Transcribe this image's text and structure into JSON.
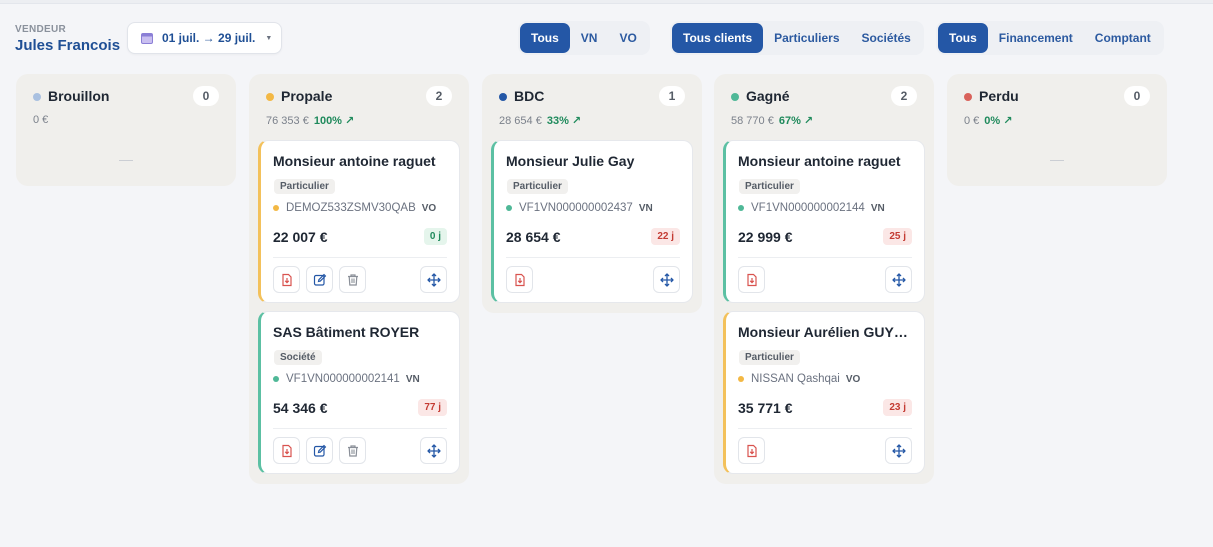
{
  "vendor": {
    "label": "VENDEUR",
    "name": "Jules Francois"
  },
  "date_range": {
    "value": "01 juil. → 29 juil.",
    "icon": "calendar-icon"
  },
  "filters": {
    "vehicle": {
      "options": [
        "Tous",
        "VN",
        "VO"
      ],
      "active": 0
    },
    "client": {
      "options": [
        "Tous clients",
        "Particuliers",
        "Sociétés"
      ],
      "active": 0
    },
    "payment": {
      "options": [
        "Tous",
        "Financement",
        "Comptant"
      ],
      "active": 0
    }
  },
  "columns": [
    {
      "id": "brouillon",
      "title": "Brouillon",
      "dot_color": "#a9c0e0",
      "count": "0",
      "amount": "0 €",
      "pct": "",
      "empty": "—",
      "cards": []
    },
    {
      "id": "propale",
      "title": "Propale",
      "dot_color": "#f3b844",
      "count": "2",
      "amount": "76 353 €",
      "pct": "100% ↗",
      "empty": "",
      "cards": [
        {
          "title": "Monsieur antoine raguet",
          "tag": "Particulier",
          "ref": "DEMOZ533ZSMV30QAB",
          "ref_dot": "#f3b844",
          "kind": "VO",
          "price": "22 007 €",
          "days": "0 j",
          "days_state": "ok",
          "border": "orange",
          "actions": [
            "download",
            "edit",
            "delete"
          ]
        },
        {
          "title": "SAS Bâtiment ROYER",
          "tag": "Société",
          "ref": "VF1VN000000002141",
          "ref_dot": "#4fb897",
          "kind": "VN",
          "price": "54 346 €",
          "days": "77 j",
          "days_state": "late",
          "border": "green",
          "actions": [
            "download",
            "edit",
            "delete"
          ]
        }
      ]
    },
    {
      "id": "bdc",
      "title": "BDC",
      "dot_color": "#2457a6",
      "count": "1",
      "amount": "28 654 €",
      "pct": "33% ↗",
      "empty": "",
      "cards": [
        {
          "title": "Monsieur Julie Gay",
          "tag": "Particulier",
          "ref": "VF1VN000000002437",
          "ref_dot": "#4fb897",
          "kind": "VN",
          "price": "28 654 €",
          "days": "22 j",
          "days_state": "late",
          "border": "green",
          "actions": [
            "download"
          ]
        }
      ]
    },
    {
      "id": "gagne",
      "title": "Gagné",
      "dot_color": "#4fb897",
      "count": "2",
      "amount": "58 770 €",
      "pct": "67% ↗",
      "empty": "",
      "cards": [
        {
          "title": "Monsieur antoine raguet",
          "tag": "Particulier",
          "ref": "VF1VN000000002144",
          "ref_dot": "#4fb897",
          "kind": "VN",
          "price": "22 999 €",
          "days": "25 j",
          "days_state": "late",
          "border": "green",
          "actions": [
            "download"
          ]
        },
        {
          "title": "Monsieur Aurélien GUYON",
          "tag": "Particulier",
          "ref": "NISSAN Qashqai",
          "ref_dot": "#f3b844",
          "kind": "VO",
          "price": "35 771 €",
          "days": "23 j",
          "days_state": "late",
          "border": "orange",
          "actions": [
            "download"
          ]
        }
      ]
    },
    {
      "id": "perdu",
      "title": "Perdu",
      "dot_color": "#d9625b",
      "count": "0",
      "amount": "0 €",
      "pct": "0% ↗",
      "empty": "—",
      "cards": []
    }
  ]
}
